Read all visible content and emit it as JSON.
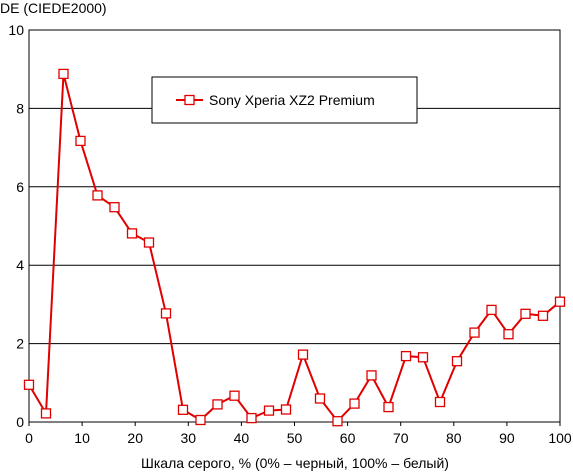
{
  "chart_data": {
    "type": "line",
    "ylabel": "DE (CIEDE2000)",
    "xlabel": "Шкала серого, % (0% – черный, 100% – белый)",
    "xlim": [
      0,
      100
    ],
    "ylim": [
      0,
      10
    ],
    "x_ticks": [
      "0",
      "10",
      "20",
      "30",
      "40",
      "50",
      "60",
      "70",
      "80",
      "90",
      "100"
    ],
    "y_ticks": [
      "0",
      "2",
      "4",
      "6",
      "8",
      "10"
    ],
    "grid": "horizontal",
    "legend_position": "top-center",
    "series": [
      {
        "name": "Sony Xperia XZ2 Premium",
        "color": "#e00000",
        "marker": "square",
        "x": [
          0,
          3.2,
          6.5,
          9.7,
          12.9,
          16.1,
          19.4,
          22.6,
          25.8,
          29.0,
          32.3,
          35.5,
          38.7,
          41.9,
          45.2,
          48.4,
          51.6,
          54.8,
          58.1,
          61.3,
          64.5,
          67.7,
          71.0,
          74.2,
          77.4,
          80.6,
          83.9,
          87.1,
          90.3,
          93.5,
          96.8,
          100
        ],
        "y": [
          0.95,
          0.22,
          8.88,
          7.17,
          5.78,
          5.48,
          4.81,
          4.58,
          2.77,
          0.31,
          0.05,
          0.45,
          0.67,
          0.1,
          0.29,
          0.32,
          1.72,
          0.6,
          0.02,
          0.47,
          1.19,
          0.38,
          1.68,
          1.65,
          0.51,
          1.55,
          2.28,
          2.86,
          2.24,
          2.76,
          2.71,
          3.07
        ]
      }
    ]
  }
}
